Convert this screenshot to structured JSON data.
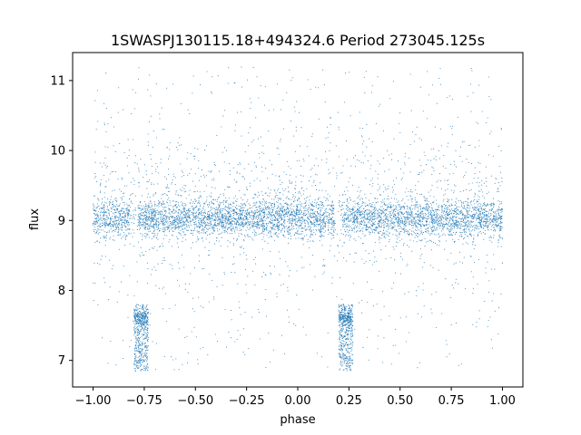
{
  "chart_data": {
    "type": "scatter",
    "title": "1SWASPJ130115.18+494324.6 Period 273045.125s",
    "xlabel": "phase",
    "ylabel": "flux",
    "xlim": [
      -1.1,
      1.1
    ],
    "ylim": [
      6.62,
      11.4
    ],
    "x_ticks": [
      -1.0,
      -0.75,
      -0.5,
      -0.25,
      0.0,
      0.25,
      0.5,
      0.75,
      1.0
    ],
    "x_tick_labels": [
      "−1.00",
      "−0.75",
      "−0.50",
      "−0.25",
      "0.00",
      "0.25",
      "0.50",
      "0.75",
      "1.00"
    ],
    "y_ticks": [
      7,
      8,
      9,
      10,
      11
    ],
    "y_tick_labels": [
      "7",
      "8",
      "9",
      "10",
      "11"
    ],
    "grid": false,
    "point_color": "#1f77b4",
    "series": [
      {
        "phase_range": [
          -1.0,
          1.0
        ],
        "baseline_flux": 9.03,
        "baseline_spread": 0.13,
        "clusters": [
          {
            "x_range": [
              -0.8,
              -0.73
            ],
            "y_range": [
              6.85,
              7.8
            ]
          },
          {
            "x_range": [
              0.2,
              0.27
            ],
            "y_range": [
              6.85,
              7.8
            ]
          }
        ]
      }
    ]
  }
}
